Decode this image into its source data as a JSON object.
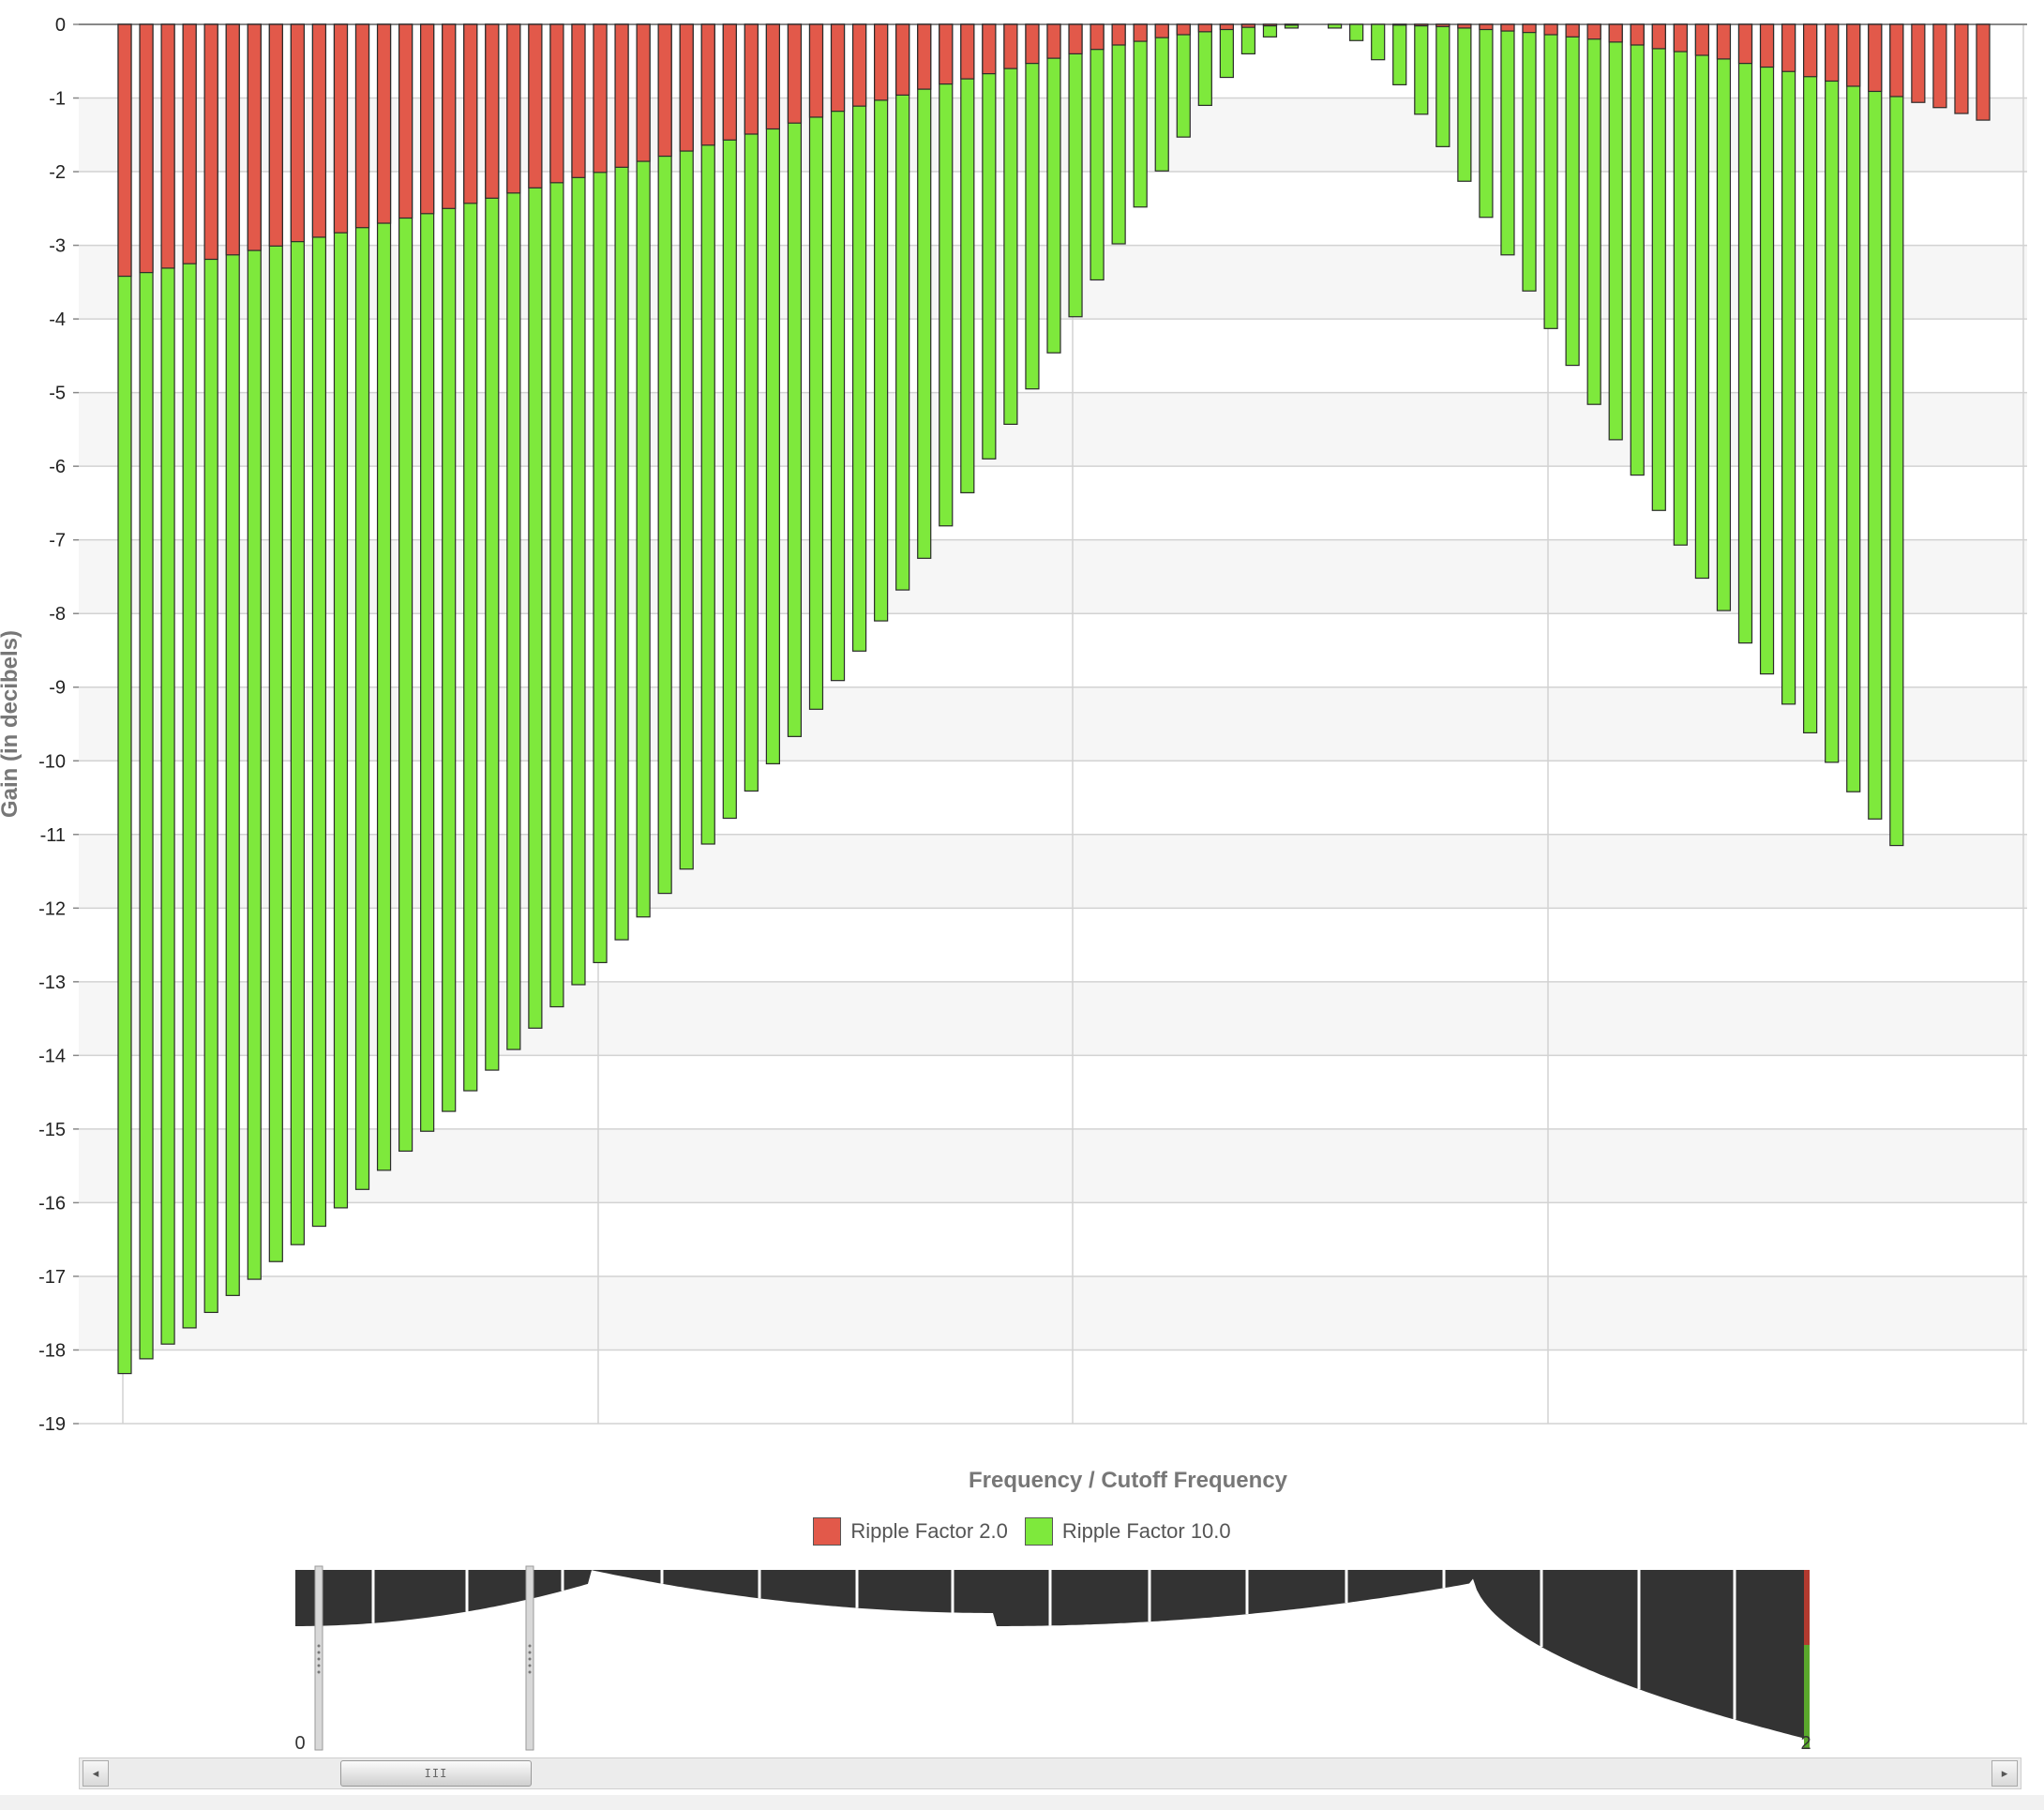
{
  "chart_data": {
    "type": "bar",
    "stacked": false,
    "overlapped": true,
    "title": "",
    "xlabel": "Frequency / Cutoff Frequency",
    "ylabel": "Gain (in decibels)",
    "ylim": [
      -19,
      0
    ],
    "yticks": [
      0,
      -1,
      -2,
      -3,
      -4,
      -5,
      -6,
      -7,
      -8,
      -9,
      -10,
      -11,
      -12,
      -13,
      -14,
      -15,
      -16,
      -17,
      -18,
      -19
    ],
    "grid": true,
    "legend_position": "bottom-center",
    "series": [
      {
        "name": "Ripple Factor 2.0",
        "color": "#e2594a",
        "values": [
          -3.42,
          -3.37,
          -3.31,
          -3.25,
          -3.19,
          -3.13,
          -3.07,
          -3.01,
          -2.95,
          -2.89,
          -2.83,
          -2.76,
          -2.7,
          -2.63,
          -2.57,
          -2.5,
          -2.43,
          -2.36,
          -2.29,
          -2.22,
          -2.15,
          -2.08,
          -2.01,
          -1.94,
          -1.86,
          -1.79,
          -1.72,
          -1.64,
          -1.57,
          -1.49,
          -1.42,
          -1.34,
          -1.26,
          -1.18,
          -1.11,
          -1.03,
          -0.96,
          -0.88,
          -0.81,
          -0.74,
          -0.67,
          -0.6,
          -0.53,
          -0.46,
          -0.4,
          -0.34,
          -0.28,
          -0.23,
          -0.18,
          -0.14,
          -0.1,
          -0.07,
          -0.04,
          -0.02,
          -0.01,
          0,
          0,
          0,
          0,
          -0.01,
          -0.02,
          -0.03,
          -0.05,
          -0.07,
          -0.09,
          -0.11,
          -0.14,
          -0.17,
          -0.2,
          -0.24,
          -0.28,
          -0.33,
          -0.37,
          -0.42,
          -0.47,
          -0.53,
          -0.58,
          -0.64,
          -0.71,
          -0.77,
          -0.84,
          -0.91,
          -0.98,
          -1.06,
          -1.13,
          -1.21,
          -1.3
        ]
      },
      {
        "name": "Ripple Factor 10.0",
        "color": "#7ee93c",
        "values": [
          -18.32,
          -18.12,
          -17.92,
          -17.7,
          -17.49,
          -17.26,
          -17.04,
          -16.8,
          -16.57,
          -16.32,
          -16.07,
          -15.82,
          -15.56,
          -15.3,
          -15.03,
          -14.76,
          -14.48,
          -14.2,
          -13.92,
          -13.63,
          -13.34,
          -13.04,
          -12.74,
          -12.43,
          -12.12,
          -11.8,
          -11.47,
          -11.13,
          -10.78,
          -10.41,
          -10.04,
          -9.67,
          -9.3,
          -8.91,
          -8.51,
          -8.1,
          -7.68,
          -7.25,
          -6.81,
          -6.36,
          -5.9,
          -5.43,
          -4.95,
          -4.46,
          -3.97,
          -3.47,
          -2.98,
          -2.48,
          -1.99,
          -1.53,
          -1.1,
          -0.72,
          -0.4,
          -0.17,
          -0.05,
          0,
          -0.05,
          -0.22,
          -0.48,
          -0.82,
          -1.22,
          -1.66,
          -2.13,
          -2.62,
          -3.13,
          -3.62,
          -4.13,
          -4.63,
          -5.16,
          -5.64,
          -6.12,
          -6.6,
          -7.07,
          -7.52,
          -7.96,
          -8.4,
          -8.82,
          -9.23,
          -9.62,
          -10.02,
          -10.42,
          -10.79,
          -11.15
        ]
      }
    ]
  },
  "navigator": {
    "start_label": "0",
    "end_label": "2",
    "scroll_thumb_label": "III",
    "scroll_left_label": "◂",
    "scroll_right_label": "▸"
  }
}
